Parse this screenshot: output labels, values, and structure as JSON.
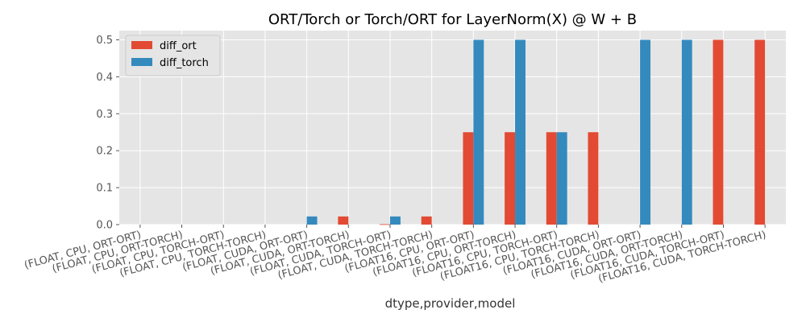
{
  "chart_data": {
    "type": "bar",
    "title": "ORT/Torch or Torch/ORT for LayerNorm(X) @ W + B",
    "xlabel": "dtype,provider,model",
    "ylabel": "",
    "ylim": [
      0,
      0.525
    ],
    "yticks": [
      0.0,
      0.1,
      0.2,
      0.3,
      0.4,
      0.5
    ],
    "ytick_labels": [
      "0.0",
      "0.1",
      "0.2",
      "0.3",
      "0.4",
      "0.5"
    ],
    "grid": true,
    "legend_position": "top-left",
    "categories": [
      "(FLOAT, CPU, ORT-ORT)",
      "(FLOAT, CPU, ORT-TORCH)",
      "(FLOAT, CPU, TORCH-ORT)",
      "(FLOAT, CPU, TORCH-TORCH)",
      "(FLOAT, CUDA, ORT-ORT)",
      "(FLOAT, CUDA, ORT-TORCH)",
      "(FLOAT, CUDA, TORCH-ORT)",
      "(FLOAT, CUDA, TORCH-TORCH)",
      "(FLOAT16, CPU, ORT-ORT)",
      "(FLOAT16, CPU, ORT-TORCH)",
      "(FLOAT16, CPU, TORCH-ORT)",
      "(FLOAT16, CPU, TORCH-TORCH)",
      "(FLOAT16, CUDA, ORT-ORT)",
      "(FLOAT16, CUDA, ORT-TORCH)",
      "(FLOAT16, CUDA, TORCH-ORT)",
      "(FLOAT16, CUDA, TORCH-TORCH)"
    ],
    "series": [
      {
        "name": "diff_ort",
        "color": "#E24A33",
        "values": [
          0,
          0,
          0,
          0,
          0,
          0.022,
          0.001,
          0.022,
          0.25,
          0.25,
          0.25,
          0.25,
          0,
          0,
          0.5,
          0.5
        ]
      },
      {
        "name": "diff_torch",
        "color": "#348ABD",
        "values": [
          0,
          0,
          0,
          0,
          0.022,
          0,
          0.022,
          0,
          0.5,
          0.5,
          0.25,
          0,
          0.5,
          0.5,
          0,
          0
        ]
      }
    ]
  },
  "colors": {
    "plot_background": "#E5E5E5",
    "grid": "#FFFFFF"
  }
}
